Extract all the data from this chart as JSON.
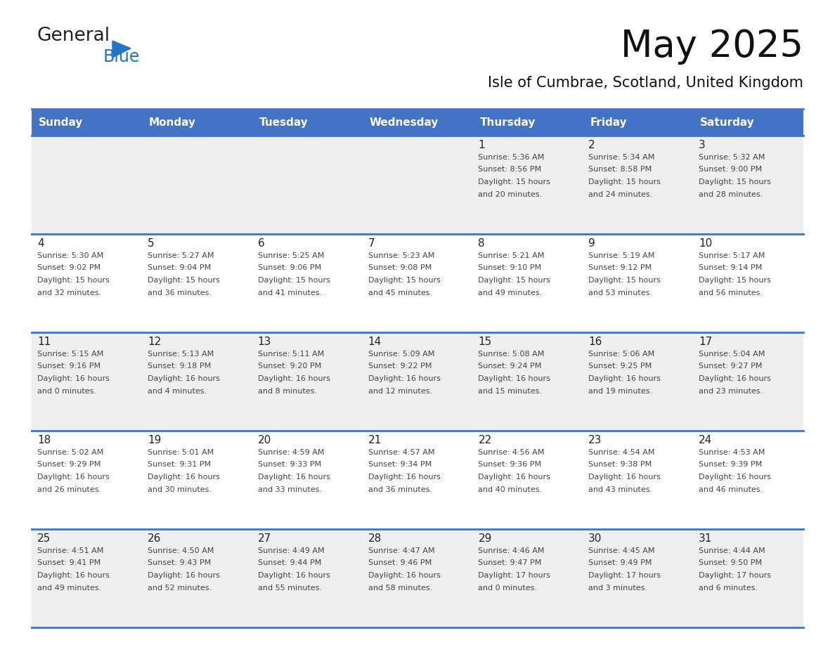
{
  "title": "May 2025",
  "subtitle": "Isle of Cumbrae, Scotland, United Kingdom",
  "days_of_week": [
    "Sunday",
    "Monday",
    "Tuesday",
    "Wednesday",
    "Thursday",
    "Friday",
    "Saturday"
  ],
  "header_bg": "#4472C4",
  "header_text_color": "#FFFFFF",
  "row0_bg": "#EFEFEF",
  "row1_bg": "#FFFFFF",
  "row2_bg": "#EFEFEF",
  "row3_bg": "#FFFFFF",
  "row4_bg": "#EFEFEF",
  "cell_text_color": "#333333",
  "line_color": "#4472C4",
  "logo_general_color": "#222222",
  "logo_blue_color": "#2176C7",
  "calendar_data": [
    [
      {
        "day": "",
        "lines": []
      },
      {
        "day": "",
        "lines": []
      },
      {
        "day": "",
        "lines": []
      },
      {
        "day": "",
        "lines": []
      },
      {
        "day": "1",
        "lines": [
          "Sunrise: 5:36 AM",
          "Sunset: 8:56 PM",
          "Daylight: 15 hours",
          "and 20 minutes."
        ]
      },
      {
        "day": "2",
        "lines": [
          "Sunrise: 5:34 AM",
          "Sunset: 8:58 PM",
          "Daylight: 15 hours",
          "and 24 minutes."
        ]
      },
      {
        "day": "3",
        "lines": [
          "Sunrise: 5:32 AM",
          "Sunset: 9:00 PM",
          "Daylight: 15 hours",
          "and 28 minutes."
        ]
      }
    ],
    [
      {
        "day": "4",
        "lines": [
          "Sunrise: 5:30 AM",
          "Sunset: 9:02 PM",
          "Daylight: 15 hours",
          "and 32 minutes."
        ]
      },
      {
        "day": "5",
        "lines": [
          "Sunrise: 5:27 AM",
          "Sunset: 9:04 PM",
          "Daylight: 15 hours",
          "and 36 minutes."
        ]
      },
      {
        "day": "6",
        "lines": [
          "Sunrise: 5:25 AM",
          "Sunset: 9:06 PM",
          "Daylight: 15 hours",
          "and 41 minutes."
        ]
      },
      {
        "day": "7",
        "lines": [
          "Sunrise: 5:23 AM",
          "Sunset: 9:08 PM",
          "Daylight: 15 hours",
          "and 45 minutes."
        ]
      },
      {
        "day": "8",
        "lines": [
          "Sunrise: 5:21 AM",
          "Sunset: 9:10 PM",
          "Daylight: 15 hours",
          "and 49 minutes."
        ]
      },
      {
        "day": "9",
        "lines": [
          "Sunrise: 5:19 AM",
          "Sunset: 9:12 PM",
          "Daylight: 15 hours",
          "and 53 minutes."
        ]
      },
      {
        "day": "10",
        "lines": [
          "Sunrise: 5:17 AM",
          "Sunset: 9:14 PM",
          "Daylight: 15 hours",
          "and 56 minutes."
        ]
      }
    ],
    [
      {
        "day": "11",
        "lines": [
          "Sunrise: 5:15 AM",
          "Sunset: 9:16 PM",
          "Daylight: 16 hours",
          "and 0 minutes."
        ]
      },
      {
        "day": "12",
        "lines": [
          "Sunrise: 5:13 AM",
          "Sunset: 9:18 PM",
          "Daylight: 16 hours",
          "and 4 minutes."
        ]
      },
      {
        "day": "13",
        "lines": [
          "Sunrise: 5:11 AM",
          "Sunset: 9:20 PM",
          "Daylight: 16 hours",
          "and 8 minutes."
        ]
      },
      {
        "day": "14",
        "lines": [
          "Sunrise: 5:09 AM",
          "Sunset: 9:22 PM",
          "Daylight: 16 hours",
          "and 12 minutes."
        ]
      },
      {
        "day": "15",
        "lines": [
          "Sunrise: 5:08 AM",
          "Sunset: 9:24 PM",
          "Daylight: 16 hours",
          "and 15 minutes."
        ]
      },
      {
        "day": "16",
        "lines": [
          "Sunrise: 5:06 AM",
          "Sunset: 9:25 PM",
          "Daylight: 16 hours",
          "and 19 minutes."
        ]
      },
      {
        "day": "17",
        "lines": [
          "Sunrise: 5:04 AM",
          "Sunset: 9:27 PM",
          "Daylight: 16 hours",
          "and 23 minutes."
        ]
      }
    ],
    [
      {
        "day": "18",
        "lines": [
          "Sunrise: 5:02 AM",
          "Sunset: 9:29 PM",
          "Daylight: 16 hours",
          "and 26 minutes."
        ]
      },
      {
        "day": "19",
        "lines": [
          "Sunrise: 5:01 AM",
          "Sunset: 9:31 PM",
          "Daylight: 16 hours",
          "and 30 minutes."
        ]
      },
      {
        "day": "20",
        "lines": [
          "Sunrise: 4:59 AM",
          "Sunset: 9:33 PM",
          "Daylight: 16 hours",
          "and 33 minutes."
        ]
      },
      {
        "day": "21",
        "lines": [
          "Sunrise: 4:57 AM",
          "Sunset: 9:34 PM",
          "Daylight: 16 hours",
          "and 36 minutes."
        ]
      },
      {
        "day": "22",
        "lines": [
          "Sunrise: 4:56 AM",
          "Sunset: 9:36 PM",
          "Daylight: 16 hours",
          "and 40 minutes."
        ]
      },
      {
        "day": "23",
        "lines": [
          "Sunrise: 4:54 AM",
          "Sunset: 9:38 PM",
          "Daylight: 16 hours",
          "and 43 minutes."
        ]
      },
      {
        "day": "24",
        "lines": [
          "Sunrise: 4:53 AM",
          "Sunset: 9:39 PM",
          "Daylight: 16 hours",
          "and 46 minutes."
        ]
      }
    ],
    [
      {
        "day": "25",
        "lines": [
          "Sunrise: 4:51 AM",
          "Sunset: 9:41 PM",
          "Daylight: 16 hours",
          "and 49 minutes."
        ]
      },
      {
        "day": "26",
        "lines": [
          "Sunrise: 4:50 AM",
          "Sunset: 9:43 PM",
          "Daylight: 16 hours",
          "and 52 minutes."
        ]
      },
      {
        "day": "27",
        "lines": [
          "Sunrise: 4:49 AM",
          "Sunset: 9:44 PM",
          "Daylight: 16 hours",
          "and 55 minutes."
        ]
      },
      {
        "day": "28",
        "lines": [
          "Sunrise: 4:47 AM",
          "Sunset: 9:46 PM",
          "Daylight: 16 hours",
          "and 58 minutes."
        ]
      },
      {
        "day": "29",
        "lines": [
          "Sunrise: 4:46 AM",
          "Sunset: 9:47 PM",
          "Daylight: 17 hours",
          "and 0 minutes."
        ]
      },
      {
        "day": "30",
        "lines": [
          "Sunrise: 4:45 AM",
          "Sunset: 9:49 PM",
          "Daylight: 17 hours",
          "and 3 minutes."
        ]
      },
      {
        "day": "31",
        "lines": [
          "Sunrise: 4:44 AM",
          "Sunset: 9:50 PM",
          "Daylight: 17 hours",
          "and 6 minutes."
        ]
      }
    ]
  ]
}
